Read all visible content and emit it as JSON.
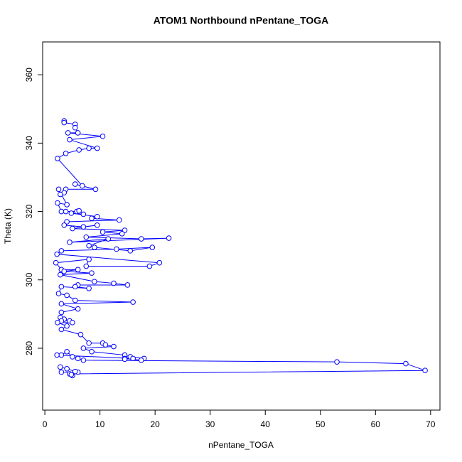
{
  "chart_data": {
    "type": "line",
    "markers": true,
    "title": "ATOM1 Northbound nPentane_TOGA",
    "x_label": "nPentane_TOGA",
    "y_label": "Theta (K)",
    "color": "#0000ff",
    "xlim": [
      -0.4,
      71.7
    ],
    "ylim": [
      261.9,
      369.6
    ],
    "xticks": [
      0,
      10,
      20,
      30,
      40,
      50,
      60,
      70
    ],
    "yticks": [
      280,
      300,
      320,
      340,
      360
    ],
    "x": [
      3.5,
      3.5,
      5.5,
      5.5,
      6,
      4.2,
      10.5,
      4.5,
      9.5,
      8,
      6.2,
      3.8,
      2.3,
      6.8,
      5.5,
      9.2,
      3.8,
      3.5,
      2.8,
      2.5,
      4,
      2.3,
      3,
      3.8,
      5.8,
      6.2,
      7,
      4.8,
      9.5,
      8.5,
      13.5,
      4,
      3.5,
      7,
      9.5,
      5,
      14.5,
      10.5,
      14,
      7.5,
      17.5,
      22.5,
      4.5,
      11.5,
      8,
      9,
      15.5,
      19.5,
      13,
      3,
      2.2,
      20.8,
      19,
      7.5,
      8,
      2,
      3,
      6,
      3.5,
      8.5,
      2.8,
      9,
      12.5,
      15,
      6,
      5.5,
      8,
      3,
      2.5,
      4,
      5.5,
      16,
      3,
      6,
      3,
      2.8,
      3.5,
      3,
      4.5,
      5,
      2.3,
      4,
      3,
      6.5,
      8,
      10.5,
      11,
      12.5,
      7,
      8.5,
      14.5,
      15.5,
      18,
      17.5,
      14.5,
      14.5,
      16,
      2.2,
      3,
      4,
      5,
      6,
      7,
      53,
      65.5,
      69,
      4.5,
      5,
      6,
      3,
      2.8,
      4,
      5.5,
      4.8
    ],
    "values": [
      346.5,
      346,
      345.5,
      344.5,
      343,
      343,
      342,
      341,
      338.5,
      338.5,
      338,
      337,
      335.5,
      327.5,
      328,
      326.5,
      326.5,
      325.5,
      325,
      326.5,
      322,
      322.5,
      320,
      320,
      320,
      320.2,
      319.2,
      319.5,
      318.5,
      318,
      317.5,
      317,
      316,
      315.5,
      316,
      315,
      314.5,
      314,
      313.5,
      312.5,
      312,
      312.2,
      311,
      312,
      310,
      309.5,
      308.5,
      309.5,
      309,
      308.5,
      307.5,
      305,
      304,
      304,
      306,
      305,
      303,
      303,
      302.5,
      302,
      301.5,
      299.5,
      299,
      298.5,
      298.5,
      298,
      297.5,
      298,
      296,
      295.5,
      294,
      293.5,
      293,
      291.5,
      290.5,
      289,
      288.5,
      288,
      288,
      287.5,
      287.5,
      286.5,
      285.5,
      284,
      281.5,
      281.5,
      281,
      280.5,
      280,
      279,
      278,
      277.5,
      277,
      276.5,
      277,
      276.8,
      277,
      278,
      278,
      279,
      277.5,
      277,
      276.5,
      276,
      275.5,
      273.5,
      272.5,
      272,
      273,
      273,
      274.5,
      274,
      273.2,
      272.3
    ]
  }
}
